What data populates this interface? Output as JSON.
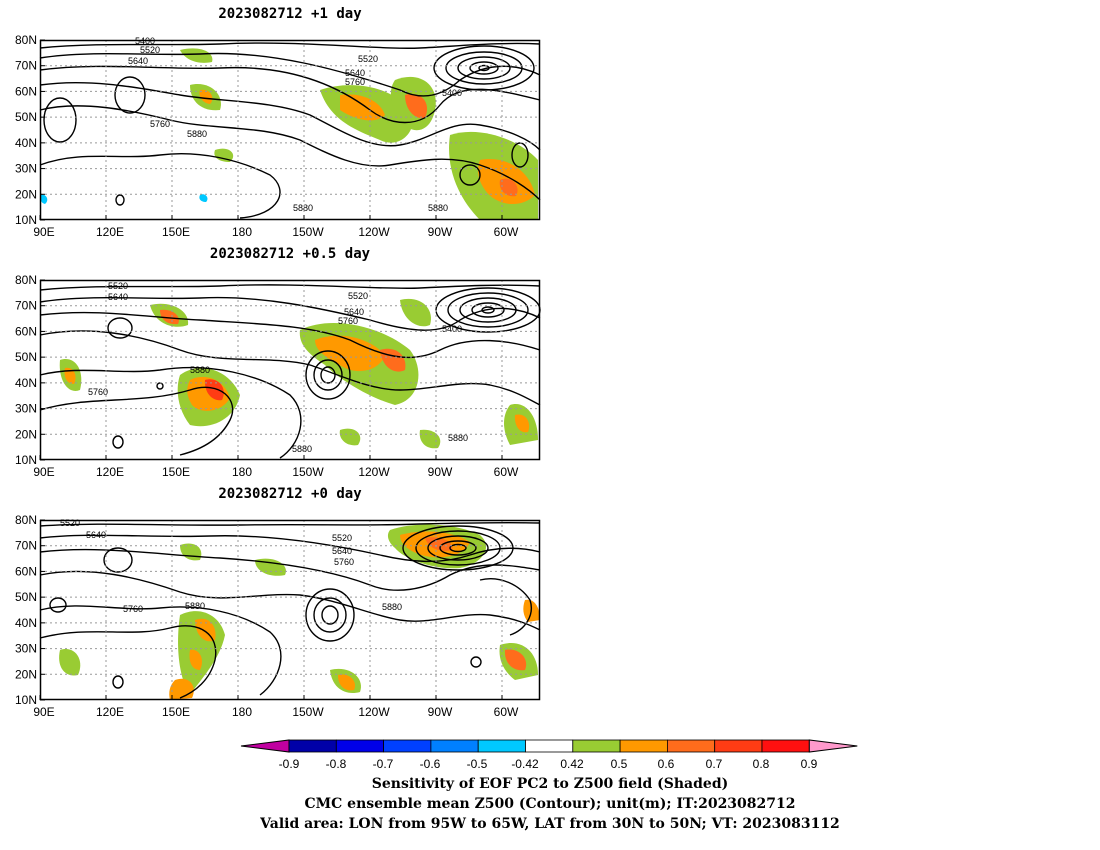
{
  "panels": [
    {
      "title": "2023082712  +1 day"
    },
    {
      "title": "2023082712  +0.5 day"
    },
    {
      "title": "2023082712  +0 day"
    }
  ],
  "axes": {
    "lat_labels": [
      "80N",
      "70N",
      "60N",
      "50N",
      "40N",
      "30N",
      "20N",
      "10N"
    ],
    "lon_labels": [
      "90E",
      "120E",
      "150E",
      "180",
      "150W",
      "120W",
      "90W",
      "60W"
    ]
  },
  "contour_labels": {
    "p0": [
      "5400",
      "5520",
      "5640",
      "5520",
      "5640",
      "5760",
      "5400",
      "5760",
      "5880",
      "5880",
      "5880"
    ],
    "p1": [
      "5520",
      "5640",
      "5520",
      "5640",
      "5760",
      "5400",
      "5880",
      "5760",
      "5880",
      "5880"
    ],
    "p2": [
      "5520",
      "5640",
      "5520",
      "5640",
      "5760",
      "5760",
      "5880",
      "5880"
    ]
  },
  "colorbar": {
    "ticks": [
      "-0.9",
      "-0.8",
      "-0.7",
      "-0.6",
      "-0.5",
      "-0.42",
      "0.42",
      "0.5",
      "0.6",
      "0.7",
      "0.8",
      "0.9"
    ],
    "colors": {
      "low_tri": "#c000a0",
      "boxes": [
        "#0000a8",
        "#0000e8",
        "#0040ff",
        "#0080ff",
        "#00c8ff",
        "#ffffff",
        "#99cc33",
        "#ff9900",
        "#ff6c1c",
        "#ff3c14",
        "#ff1010"
      ],
      "high_tri": "#ff99cc"
    }
  },
  "caption": {
    "line1": "Sensitivity of EOF PC2 to Z500 field (Shaded)",
    "line2": "CMC ensemble mean Z500 (Contour); unit(m); IT:2023082712",
    "line3": "Valid area: LON from 95W to 65W, LAT from 30N to 50N; VT: 2023083112"
  }
}
